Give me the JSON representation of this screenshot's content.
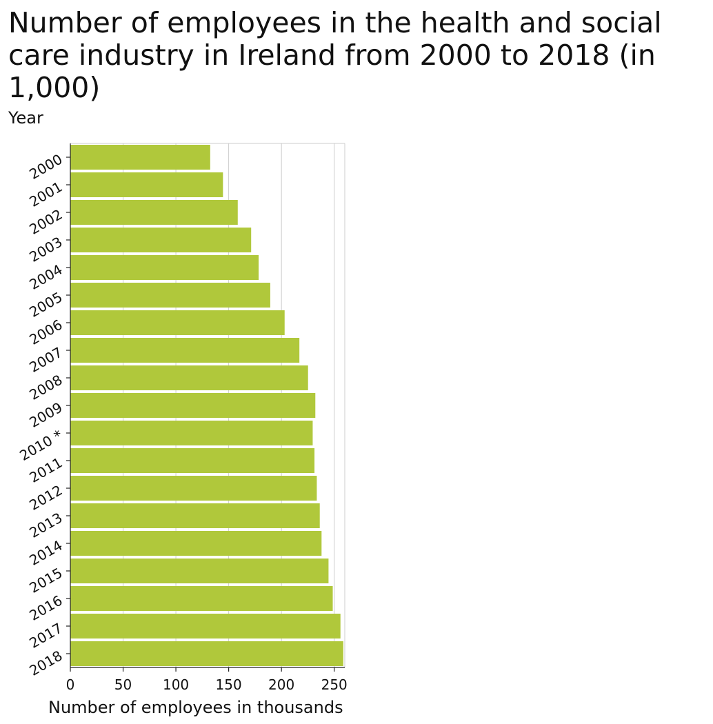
{
  "chart_data": {
    "type": "bar",
    "orientation": "horizontal",
    "title": "Number of employees in the health and social care industry in Ireland from 2000 to 2018 (in 1,000)",
    "ylabel": "Year",
    "xlabel": "Number of employees in thousands",
    "categories": [
      "2000",
      "2001",
      "2002",
      "2003",
      "2004",
      "2005",
      "2006",
      "2007",
      "2008",
      "2009",
      "2010 *",
      "2011",
      "2012",
      "2013",
      "2014",
      "2015",
      "2016",
      "2017",
      "2018"
    ],
    "values": [
      132.5,
      144.6,
      158.6,
      171.3,
      178.4,
      189.4,
      203.0,
      217.0,
      225.2,
      232.1,
      229.6,
      231.3,
      233.5,
      236.3,
      238.0,
      244.6,
      248.6,
      255.9,
      258.6
    ],
    "xlim": [
      0,
      260
    ],
    "xticks": [
      0,
      50,
      100,
      150,
      200,
      250
    ],
    "grid": true,
    "bar_color": "#b0c83b",
    "grid_color": "#cccccc"
  }
}
